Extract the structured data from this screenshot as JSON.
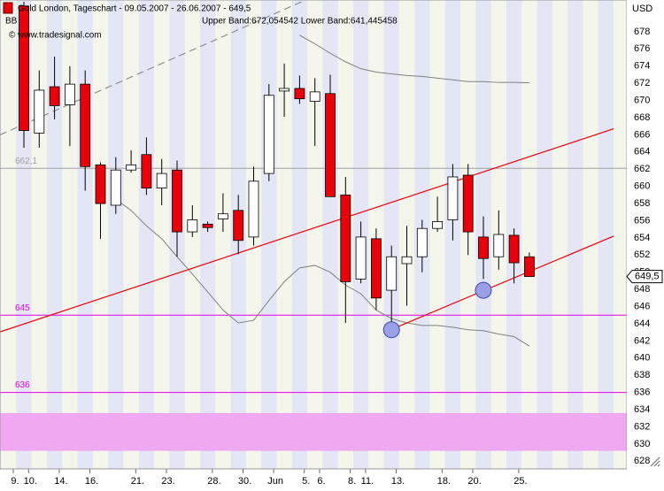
{
  "chart_data": {
    "type": "candlestick",
    "title": "Gold London, Tageschart - 09.05.2007 - 26.06.2007 - 649,5",
    "subtitle": "Upper Band:672,054542 Lower Band:641,445458",
    "source": "© www.tradesignal.com",
    "indicator": "BB",
    "y_label": "USD",
    "categories": [
      "9.",
      "10.",
      null,
      "14.",
      null,
      "16.",
      null,
      null,
      "21.",
      null,
      "23.",
      null,
      null,
      "28.",
      null,
      "30.",
      null,
      "Jun",
      null,
      "5.",
      "6.",
      null,
      "8.",
      "11.",
      null,
      "13.",
      null,
      null,
      "18.",
      null,
      "20.",
      null,
      null,
      "25."
    ],
    "open": [
      681,
      666.2,
      671.6,
      669.5,
      671.9,
      662.5,
      657.8,
      661.9,
      663.7,
      659.8,
      661.9,
      654.7,
      655.6,
      656.2,
      657.2,
      654.1,
      661.5,
      671.1,
      671.4,
      669.9,
      670.8,
      659,
      649.2,
      653.9,
      647.9,
      651,
      651.8,
      655.1,
      656.1,
      661.3,
      654.1,
      651.8,
      654.3,
      651.8
    ],
    "high": [
      681.5,
      673.5,
      675.1,
      674,
      673.5,
      662.8,
      663.4,
      664.2,
      665.7,
      663.2,
      663,
      657.8,
      655.9,
      659.2,
      659,
      662.3,
      671.9,
      674.3,
      672.9,
      672.6,
      673,
      661.1,
      655.9,
      655.1,
      653.1,
      655.4,
      656.1,
      658.8,
      662.6,
      662.6,
      656.5,
      657.2,
      655.1,
      652.3
    ],
    "low": [
      664.5,
      664.5,
      667.8,
      664.7,
      659.5,
      653.9,
      656.8,
      661.6,
      659,
      657.8,
      651.8,
      654.1,
      654.7,
      654.7,
      652.1,
      653.1,
      660.6,
      668.1,
      669.6,
      664.7,
      658.8,
      644.1,
      648.7,
      645.6,
      643.1,
      646.1,
      650,
      654.7,
      653.7,
      652,
      649.2,
      650.3,
      648.7,
      649.5
    ],
    "close": [
      666.5,
      671.2,
      669.4,
      671.9,
      662.3,
      658,
      661.9,
      662.5,
      659.8,
      661.5,
      654.7,
      656.1,
      655.2,
      656.8,
      653.7,
      660.6,
      670.6,
      671.4,
      670.2,
      671,
      658.8,
      648.9,
      654.1,
      647,
      651.8,
      651.8,
      655.1,
      655.9,
      661.1,
      654.7,
      651.6,
      654.4,
      651.1,
      649.5
    ],
    "up_color": "#ffffff",
    "down_color": "#e8000b",
    "bands": [
      {
        "color": "#808080",
        "values": [
          null,
          null,
          null,
          null,
          null,
          null,
          null,
          null,
          null,
          null,
          null,
          null,
          null,
          null,
          null,
          null,
          null,
          null,
          677.6,
          676.6,
          675.5,
          674.5,
          673.7,
          673.3,
          673.1,
          672.9,
          672.8,
          672.6,
          672.4,
          672.2,
          672.2,
          672.1,
          672.1,
          672.05
        ]
      },
      {
        "color": "#808080",
        "values": [
          null,
          null,
          null,
          null,
          null,
          null,
          658.5,
          657.2,
          655.4,
          653.9,
          651.8,
          649.8,
          647.7,
          645.6,
          644.1,
          644.4,
          646.7,
          648.9,
          650.5,
          650.8,
          650,
          648.5,
          647.5,
          645.6,
          644.6,
          644.1,
          643.8,
          643.8,
          643.6,
          643.3,
          643.2,
          642.8,
          642.5,
          641.4
        ]
      }
    ],
    "trendlines": [
      {
        "x": [
          -1.56,
          38.5
        ],
        "y": [
          643.05,
          666.7
        ],
        "color": "#e8000b",
        "dashed": false
      },
      {
        "x": [
          23.6,
          38.5
        ],
        "y": [
          643.05,
          654.2
        ],
        "color": "#e8000b",
        "dashed": false
      },
      {
        "x": [
          -1.56,
          18.4
        ],
        "y": [
          666,
          681.7
        ],
        "color": "#909090",
        "dashed": true
      }
    ],
    "levels": [
      {
        "value": 662.1,
        "label": "662,1"
      },
      645,
      636
    ],
    "level_colors": [
      "#a0a0a0",
      "#e000e0",
      "#e000e0"
    ],
    "zone": [
      629.2,
      633.6
    ],
    "zone_color": "#f0a8f0",
    "markers": {
      "x": [
        24,
        30
      ],
      "y": [
        643.3,
        647.9
      ],
      "color": "#9aa0e8"
    },
    "last_price": {
      "value": 649.5,
      "label": "649,5"
    },
    "ylim": [
      627.1,
      681.7
    ],
    "yticks": [
      628,
      630,
      632,
      634,
      636,
      638,
      640,
      642,
      644,
      646,
      648,
      650,
      652,
      654,
      656,
      658,
      660,
      662,
      664,
      666,
      668,
      670,
      672,
      674,
      676,
      678
    ]
  }
}
